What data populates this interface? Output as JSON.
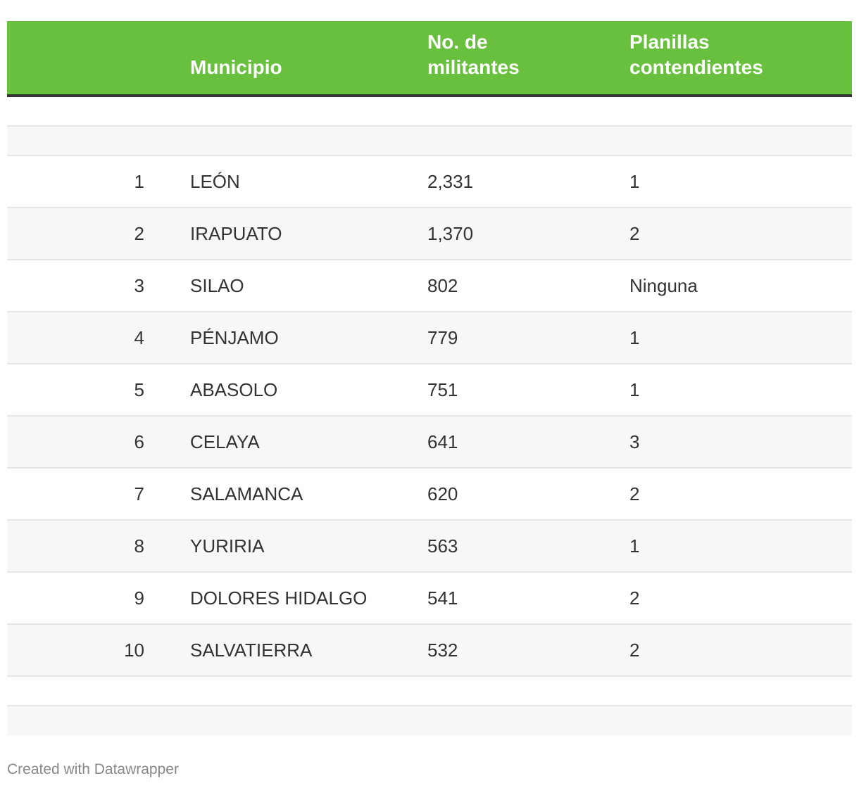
{
  "table": {
    "headers": {
      "rank": "",
      "municipio": "Municipio",
      "militantes_line1": "No. de",
      "militantes_line2": "militantes",
      "planillas_line1": "Planillas",
      "planillas_line2": "contendientes"
    },
    "rows": [
      {
        "rank": "1",
        "municipio": "LEÓN",
        "militantes": "2,331",
        "planillas": "1"
      },
      {
        "rank": "2",
        "municipio": "IRAPUATO",
        "militantes": "1,370",
        "planillas": "2"
      },
      {
        "rank": "3",
        "municipio": "SILAO",
        "militantes": "802",
        "planillas": "Ninguna"
      },
      {
        "rank": "4",
        "municipio": "PÉNJAMO",
        "militantes": "779",
        "planillas": "1"
      },
      {
        "rank": "5",
        "municipio": "ABASOLO",
        "militantes": "751",
        "planillas": "1"
      },
      {
        "rank": "6",
        "municipio": "CELAYA",
        "militantes": "641",
        "planillas": "3"
      },
      {
        "rank": "7",
        "municipio": "SALAMANCA",
        "militantes": "620",
        "planillas": "2"
      },
      {
        "rank": "8",
        "municipio": "YURIRIA",
        "militantes": "563",
        "planillas": "1"
      },
      {
        "rank": "9",
        "municipio": "DOLORES HIDALGO",
        "militantes": "541",
        "planillas": "2"
      },
      {
        "rank": "10",
        "municipio": "SALVATIERRA",
        "militantes": "532",
        "planillas": "2"
      }
    ]
  },
  "colors": {
    "header_bg": "#69c03e",
    "header_text": "#ffffff",
    "stripe": "#f7f7f7"
  },
  "footer": {
    "credit": "Created with Datawrapper"
  }
}
